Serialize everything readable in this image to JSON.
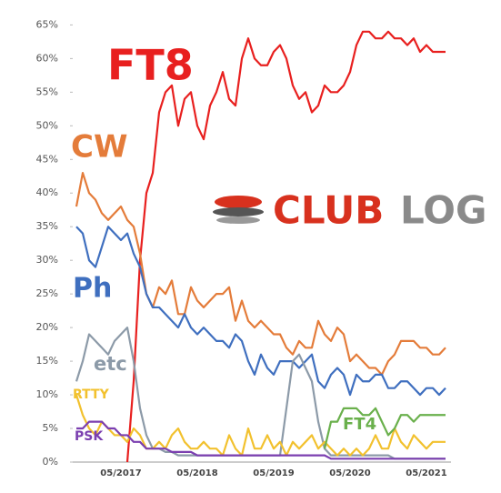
{
  "chart_data": {
    "type": "line",
    "categories": [
      null,
      null,
      null,
      null,
      null,
      null,
      null,
      "05/2017",
      null,
      null,
      null,
      null,
      null,
      null,
      null,
      null,
      null,
      null,
      null,
      "05/2018",
      null,
      null,
      null,
      null,
      null,
      null,
      null,
      null,
      null,
      null,
      null,
      "05/2019",
      null,
      null,
      null,
      null,
      null,
      null,
      null,
      null,
      null,
      null,
      null,
      "05/2020",
      null,
      null,
      null,
      null,
      null,
      null,
      null,
      null,
      null,
      null,
      null,
      "05/2021",
      null,
      null,
      null
    ],
    "ylim": [
      0,
      66
    ],
    "yticks": [
      {
        "value": 0,
        "label": "0%"
      },
      {
        "value": 5,
        "label": "5%"
      },
      {
        "value": 10,
        "label": "10%"
      },
      {
        "value": 15,
        "label": "15%"
      },
      {
        "value": 20,
        "label": "20%"
      },
      {
        "value": 25,
        "label": "25%"
      },
      {
        "value": 30,
        "label": "30%"
      },
      {
        "value": 35,
        "label": "35%"
      },
      {
        "value": 40,
        "label": "40%"
      },
      {
        "value": 45,
        "label": "45%"
      },
      {
        "value": 50,
        "label": "50%"
      },
      {
        "value": 55,
        "label": "55%"
      },
      {
        "value": 60,
        "label": "60%"
      },
      {
        "value": 65,
        "label": "65%"
      }
    ],
    "grid": false,
    "series": [
      {
        "name": "FT8",
        "color": "#e8201f",
        "values": [
          null,
          null,
          null,
          null,
          null,
          null,
          null,
          null,
          0,
          12,
          30,
          40,
          43,
          52,
          55,
          56,
          50,
          54,
          55,
          50,
          48,
          53,
          55,
          58,
          54,
          53,
          60,
          63,
          60,
          59,
          59,
          61,
          62,
          60,
          56,
          54,
          55,
          52,
          53,
          56,
          55,
          55,
          56,
          58,
          62,
          64,
          64,
          63,
          63,
          64,
          63,
          63,
          62,
          63,
          61,
          62,
          61,
          61,
          61
        ]
      },
      {
        "name": "CW",
        "color": "#e47c3a",
        "values": [
          38,
          43,
          40,
          39,
          37,
          36,
          37,
          38,
          36,
          35,
          31,
          25,
          23,
          26,
          25,
          27,
          22,
          22,
          26,
          24,
          23,
          24,
          25,
          25,
          26,
          21,
          24,
          21,
          20,
          21,
          20,
          19,
          19,
          17,
          16,
          18,
          17,
          17,
          21,
          19,
          18,
          20,
          19,
          15,
          16,
          15,
          14,
          14,
          13,
          15,
          16,
          18,
          18,
          18,
          17,
          17,
          16,
          16,
          17
        ]
      },
      {
        "name": "Ph",
        "color": "#3f6fbf",
        "values": [
          35,
          34,
          30,
          29,
          32,
          35,
          34,
          33,
          34,
          31,
          29,
          25,
          23,
          23,
          22,
          21,
          20,
          22,
          20,
          19,
          20,
          19,
          18,
          18,
          17,
          19,
          18,
          15,
          13,
          16,
          14,
          13,
          15,
          15,
          15,
          14,
          15,
          16,
          12,
          11,
          13,
          14,
          13,
          10,
          13,
          12,
          12,
          13,
          13,
          11,
          11,
          12,
          12,
          11,
          10,
          11,
          11,
          10,
          11
        ]
      },
      {
        "name": "etc",
        "color": "#8c9aa8",
        "values": [
          12,
          15,
          19,
          18,
          17,
          16,
          18,
          19,
          20,
          15,
          8,
          4,
          2,
          2,
          1.5,
          1.5,
          1,
          1,
          1,
          1,
          1,
          1,
          1,
          1,
          1,
          1,
          1,
          1,
          1,
          1,
          1,
          1,
          1,
          8,
          15,
          16,
          14,
          12,
          6,
          2,
          1,
          1,
          1,
          1,
          1,
          1,
          1,
          1,
          1,
          1,
          0.5,
          0.5,
          0.5,
          0.5,
          0.5,
          0.5,
          0.5,
          0.5,
          0.5
        ]
      },
      {
        "name": "RTTY",
        "color": "#f2c12e",
        "values": [
          10,
          7,
          5,
          4,
          6,
          5,
          4,
          4,
          3,
          5,
          4,
          2,
          2,
          3,
          2,
          4,
          5,
          3,
          2,
          2,
          3,
          2,
          2,
          1,
          4,
          2,
          1,
          5,
          2,
          2,
          4,
          2,
          3,
          1,
          3,
          2,
          3,
          4,
          2,
          3,
          2,
          1,
          2,
          1,
          2,
          1,
          2,
          4,
          2,
          2,
          5,
          3,
          2,
          4,
          3,
          2,
          3,
          3,
          3
        ]
      },
      {
        "name": "PSK",
        "color": "#7b3fb0",
        "values": [
          5,
          5,
          6,
          6,
          6,
          5,
          5,
          4,
          4,
          3,
          3,
          2,
          2,
          2,
          2,
          1.5,
          1.5,
          1.5,
          1.5,
          1,
          1,
          1,
          1,
          1,
          1,
          1,
          1,
          1,
          1,
          1,
          1,
          1,
          1,
          1,
          1,
          1,
          1,
          1,
          1,
          1,
          0.5,
          0.5,
          0.5,
          0.5,
          0.5,
          0.5,
          0.5,
          0.5,
          0.5,
          0.5,
          0.5,
          0.5,
          0.5,
          0.5,
          0.5,
          0.5,
          0.5,
          0.5,
          0.5
        ]
      },
      {
        "name": "FT4",
        "color": "#6ab04c",
        "values": [
          null,
          null,
          null,
          null,
          null,
          null,
          null,
          null,
          null,
          null,
          null,
          null,
          null,
          null,
          null,
          null,
          null,
          null,
          null,
          null,
          null,
          null,
          null,
          null,
          null,
          null,
          null,
          null,
          null,
          null,
          null,
          null,
          null,
          null,
          null,
          null,
          null,
          null,
          null,
          2,
          6,
          6,
          8,
          8,
          8,
          7,
          7,
          8,
          6,
          4,
          5,
          7,
          7,
          6,
          7,
          7,
          7,
          7,
          7
        ]
      }
    ]
  },
  "logo": [
    "CLUB",
    "LOG"
  ]
}
